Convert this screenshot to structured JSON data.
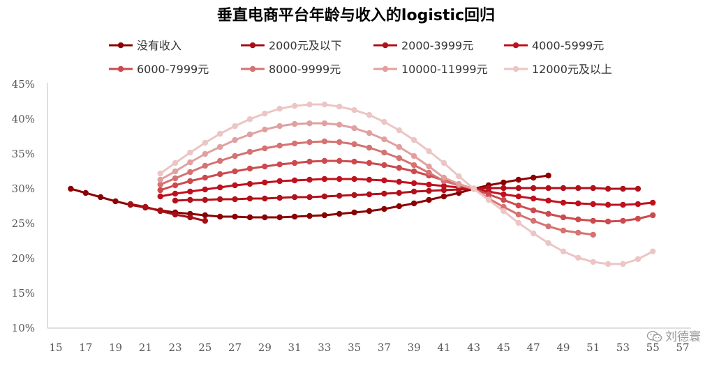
{
  "chart_data": {
    "type": "line",
    "title": "垂直电商平台年龄与收入的logistic回归",
    "xlabel": "",
    "ylabel": "",
    "xlim": [
      15,
      57
    ],
    "ylim": [
      10,
      45
    ],
    "x_ticks": [
      15,
      17,
      19,
      21,
      23,
      25,
      27,
      29,
      31,
      33,
      35,
      37,
      39,
      41,
      43,
      45,
      47,
      49,
      51,
      53,
      55,
      57
    ],
    "y_ticks": [
      10,
      15,
      20,
      25,
      30,
      35,
      40,
      45
    ],
    "y_tick_labels": [
      "10%",
      "15%",
      "20%",
      "25%",
      "30%",
      "35%",
      "40%",
      "45%"
    ],
    "grid": false,
    "legend_position": "top",
    "series": [
      {
        "name": "没有收入",
        "color": "#8B0000",
        "x": [
          16,
          17,
          18,
          19,
          20,
          21,
          22,
          23,
          24,
          25,
          26,
          27,
          28,
          29,
          30,
          31,
          32,
          33,
          34,
          35,
          36,
          37,
          38,
          39,
          40,
          41,
          42,
          43,
          44,
          45,
          46,
          47,
          48
        ],
        "values": [
          30.0,
          29.4,
          28.8,
          28.2,
          27.7,
          27.3,
          26.9,
          26.6,
          26.4,
          26.2,
          26.0,
          26.0,
          25.9,
          25.9,
          25.9,
          26.0,
          26.1,
          26.2,
          26.4,
          26.6,
          26.8,
          27.1,
          27.5,
          27.9,
          28.4,
          28.9,
          29.4,
          30.0,
          30.5,
          30.9,
          31.3,
          31.6,
          31.9
        ]
      },
      {
        "name": "2000元及以下",
        "color": "#A50F15",
        "x": [
          20,
          21,
          22,
          23,
          24,
          25
        ],
        "values": [
          27.8,
          27.4,
          26.8,
          26.3,
          25.9,
          25.4
        ]
      },
      {
        "name": "2000-3999元",
        "color": "#B0111A",
        "x": [
          23,
          24,
          25,
          26,
          27,
          28,
          29,
          30,
          31,
          32,
          33,
          34,
          35,
          36,
          37,
          38,
          39,
          40,
          41,
          42,
          43,
          44,
          45,
          46,
          47,
          48,
          49,
          50,
          51,
          52,
          53,
          54
        ],
        "values": [
          28.3,
          28.4,
          28.4,
          28.5,
          28.5,
          28.6,
          28.6,
          28.7,
          28.8,
          28.8,
          28.9,
          29.0,
          29.1,
          29.2,
          29.3,
          29.4,
          29.6,
          29.7,
          29.8,
          29.9,
          30.0,
          30.1,
          30.1,
          30.1,
          30.1,
          30.1,
          30.1,
          30.1,
          30.1,
          30.0,
          30.0,
          30.0
        ]
      },
      {
        "name": "4000-5999元",
        "color": "#C0101E",
        "x": [
          22,
          23,
          24,
          25,
          26,
          27,
          28,
          29,
          30,
          31,
          32,
          33,
          34,
          35,
          36,
          37,
          38,
          39,
          40,
          41,
          42,
          43,
          44,
          45,
          46,
          47,
          48,
          49,
          50,
          51,
          52,
          53,
          54,
          55
        ],
        "values": [
          28.9,
          29.3,
          29.6,
          29.9,
          30.2,
          30.5,
          30.7,
          30.9,
          31.1,
          31.2,
          31.3,
          31.4,
          31.4,
          31.4,
          31.3,
          31.2,
          31.0,
          30.8,
          30.6,
          30.4,
          30.2,
          30.0,
          29.6,
          29.2,
          28.9,
          28.6,
          28.3,
          28.0,
          27.9,
          27.8,
          27.7,
          27.7,
          27.8,
          28.0
        ]
      },
      {
        "name": "6000-7999元",
        "color": "#CC4A4E",
        "x": [
          22,
          23,
          24,
          25,
          26,
          27,
          28,
          29,
          30,
          31,
          32,
          33,
          34,
          35,
          36,
          37,
          38,
          39,
          40,
          41,
          42,
          43,
          44,
          45,
          46,
          47,
          48,
          49,
          50,
          51,
          52,
          53,
          54,
          55
        ],
        "values": [
          29.8,
          30.5,
          31.1,
          31.6,
          32.1,
          32.5,
          32.9,
          33.2,
          33.5,
          33.7,
          33.9,
          34.0,
          34.0,
          33.9,
          33.7,
          33.4,
          33.0,
          32.5,
          31.9,
          31.2,
          30.6,
          30.0,
          29.2,
          28.4,
          27.6,
          26.9,
          26.4,
          25.9,
          25.6,
          25.4,
          25.3,
          25.4,
          25.7,
          26.2
        ]
      },
      {
        "name": "8000-9999元",
        "color": "#D67272",
        "x": [
          22,
          23,
          24,
          25,
          26,
          27,
          28,
          29,
          30,
          31,
          32,
          33,
          34,
          35,
          36,
          37,
          38,
          39,
          40,
          41,
          42,
          43,
          44,
          45,
          46,
          47,
          48,
          49,
          50,
          51
        ],
        "values": [
          30.6,
          31.5,
          32.4,
          33.3,
          34.0,
          34.7,
          35.3,
          35.8,
          36.2,
          36.5,
          36.7,
          36.8,
          36.7,
          36.4,
          35.9,
          35.2,
          34.4,
          33.4,
          32.3,
          31.1,
          30.5,
          30.0,
          28.6,
          27.4,
          26.3,
          25.4,
          24.6,
          24.0,
          23.7,
          23.4
        ]
      },
      {
        "name": "10000-11999元",
        "color": "#E1A0A0",
        "x": [
          22,
          23,
          24,
          25,
          26,
          27,
          28,
          29,
          30,
          31,
          32,
          33,
          34,
          35,
          36,
          37,
          38,
          39,
          40,
          41,
          42,
          43
        ],
        "values": [
          31.3,
          32.5,
          33.8,
          35.0,
          36.0,
          37.0,
          37.8,
          38.5,
          39.0,
          39.3,
          39.4,
          39.4,
          39.2,
          38.7,
          38.0,
          37.1,
          36.0,
          34.7,
          33.2,
          31.6,
          30.7,
          30.0
        ]
      },
      {
        "name": "12000元及以上",
        "color": "#ECC5C5",
        "x": [
          22,
          23,
          24,
          25,
          26,
          27,
          28,
          29,
          30,
          31,
          32,
          33,
          34,
          35,
          36,
          37,
          38,
          39,
          40,
          41,
          42,
          43,
          44,
          45,
          46,
          47,
          48,
          49,
          50,
          51,
          52,
          53,
          54,
          55
        ],
        "values": [
          32.2,
          33.7,
          35.2,
          36.6,
          37.9,
          39.0,
          40.0,
          40.8,
          41.5,
          41.9,
          42.1,
          42.1,
          41.8,
          41.3,
          40.6,
          39.6,
          38.4,
          37.0,
          35.4,
          33.7,
          31.8,
          30.0,
          28.4,
          26.8,
          25.1,
          23.6,
          22.2,
          21.0,
          20.1,
          19.5,
          19.2,
          19.2,
          19.9,
          21.0
        ]
      }
    ]
  },
  "watermark": {
    "text": "刘德寰",
    "icon": "wechat-icon"
  }
}
